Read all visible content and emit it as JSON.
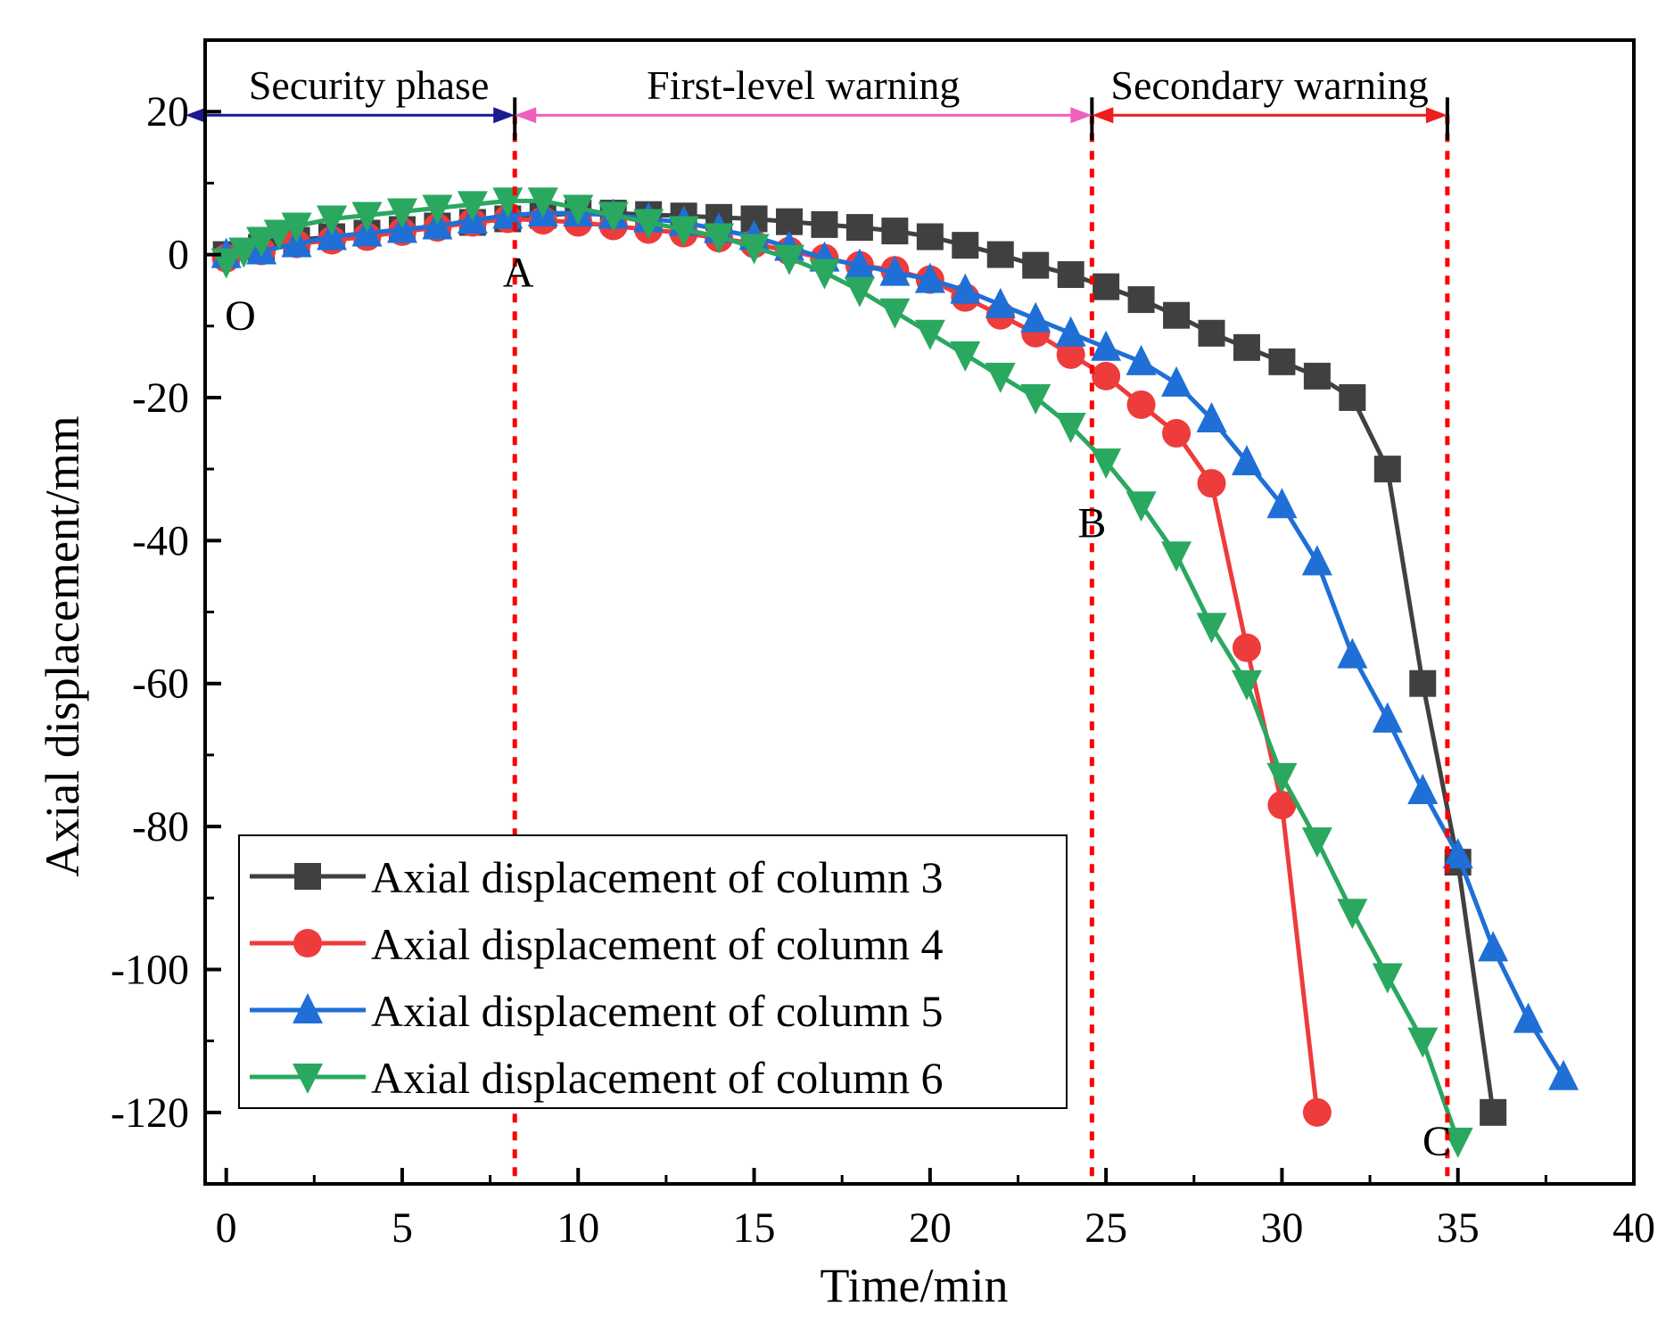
{
  "chart_data": {
    "type": "line",
    "title": "",
    "xlabel": "Time/min",
    "ylabel": "Axial displacement/mm",
    "xlim": [
      -0.6,
      40
    ],
    "ylim": [
      -130,
      30
    ],
    "xticks": [
      0,
      5,
      10,
      15,
      20,
      25,
      30,
      35,
      40
    ],
    "yticks": [
      20,
      0,
      -20,
      -40,
      -60,
      -80,
      -100,
      -120
    ],
    "xtick_labels": [
      "0",
      "5",
      "10",
      "15",
      "20",
      "25",
      "30",
      "35",
      "40"
    ],
    "ytick_labels": [
      "20",
      "0",
      "-20",
      "-40",
      "-60",
      "-80",
      "-100",
      "-120"
    ],
    "legend_position": "bottom-left",
    "series": [
      {
        "name": "Axial displacement of column 3",
        "color": "#404040",
        "marker": "square",
        "x": [
          0,
          1,
          2,
          3,
          4,
          5,
          6,
          7,
          8,
          9,
          10,
          11,
          12,
          13,
          14,
          15,
          16,
          17,
          18,
          19,
          20,
          21,
          22,
          23,
          24,
          25,
          26,
          27,
          28,
          29,
          30,
          31,
          32,
          33,
          34,
          35,
          36
        ],
        "values": [
          0,
          1,
          2,
          2.5,
          3,
          3.5,
          4,
          4.5,
          5,
          5.5,
          5.8,
          5.8,
          5.6,
          5.4,
          5.2,
          5.0,
          4.6,
          4.2,
          3.8,
          3.3,
          2.5,
          1.3,
          0,
          -1.5,
          -2.8,
          -4.5,
          -6.3,
          -8.5,
          -11,
          -13,
          -15,
          -17,
          -20,
          -30,
          -60,
          -85,
          -120
        ]
      },
      {
        "name": "Axial displacement of column 4",
        "color": "#ee3b3b",
        "marker": "circle",
        "x": [
          0,
          1,
          2,
          3,
          4,
          5,
          6,
          7,
          8,
          9,
          10,
          11,
          12,
          13,
          14,
          15,
          16,
          17,
          18,
          19,
          20,
          21,
          22,
          23,
          24,
          25,
          26,
          27,
          28,
          29,
          30,
          31
        ],
        "values": [
          -0.5,
          0.5,
          1.5,
          2,
          2.5,
          3.2,
          3.8,
          4.5,
          5,
          4.8,
          4.5,
          4,
          3.5,
          3,
          2.3,
          1.5,
          0.5,
          -0.5,
          -1.5,
          -2.2,
          -3.5,
          -6,
          -8.5,
          -11,
          -14,
          -17,
          -21,
          -25,
          -32,
          -55,
          -77,
          -120
        ]
      },
      {
        "name": "Axial displacement of column 5",
        "color": "#1f6fd6",
        "marker": "triangle-up",
        "x": [
          0,
          1,
          2,
          3,
          4,
          5,
          6,
          7,
          8,
          9,
          10,
          11,
          12,
          13,
          14,
          15,
          16,
          17,
          18,
          19,
          20,
          21,
          22,
          23,
          24,
          25,
          26,
          27,
          28,
          29,
          30,
          31,
          32,
          33,
          34,
          35,
          36,
          37,
          38
        ],
        "values": [
          0,
          0.5,
          1.5,
          2.5,
          3,
          3.5,
          4,
          4.8,
          5.5,
          5.8,
          5.8,
          5.5,
          5,
          4.5,
          3.5,
          2.5,
          1,
          -0.5,
          -1.5,
          -2.5,
          -3.5,
          -5,
          -7,
          -9,
          -11,
          -13,
          -15,
          -18,
          -23,
          -29,
          -35,
          -43,
          -56,
          -65,
          -75,
          -84,
          -97,
          -107,
          -115
        ]
      },
      {
        "name": "Axial displacement of column 6",
        "color": "#2aa860",
        "marker": "triangle-down",
        "x": [
          0,
          0.5,
          1,
          1.5,
          2,
          3,
          4,
          5,
          6,
          7,
          8,
          9,
          10,
          11,
          12,
          13,
          14,
          15,
          16,
          17,
          18,
          19,
          20,
          21,
          22,
          23,
          24,
          25,
          26,
          27,
          28,
          29,
          30,
          31,
          32,
          33,
          34,
          35
        ],
        "values": [
          -1,
          0.5,
          2,
          3,
          4,
          5,
          5.5,
          6,
          6.5,
          7,
          7.5,
          7.5,
          6.5,
          5.5,
          4.5,
          3.5,
          2.5,
          1,
          -0.5,
          -2.5,
          -5,
          -8,
          -11,
          -14,
          -17,
          -20,
          -24,
          -29,
          -35,
          -42,
          -52,
          -60,
          -73,
          -82,
          -92,
          -101,
          -110,
          -124
        ]
      }
    ],
    "annotations": {
      "phases": [
        {
          "label": "Security phase",
          "color": "#1a1a8c"
        },
        {
          "label": "First-level warning",
          "color": "#ee5fc0"
        },
        {
          "label": "Secondary warning",
          "color": "#ee1c1c"
        }
      ],
      "points": [
        {
          "label": "O"
        },
        {
          "label": "A"
        },
        {
          "label": "B"
        },
        {
          "label": "C"
        }
      ],
      "phase_boundaries_x": [
        8.2,
        24.6,
        34.7
      ]
    }
  }
}
